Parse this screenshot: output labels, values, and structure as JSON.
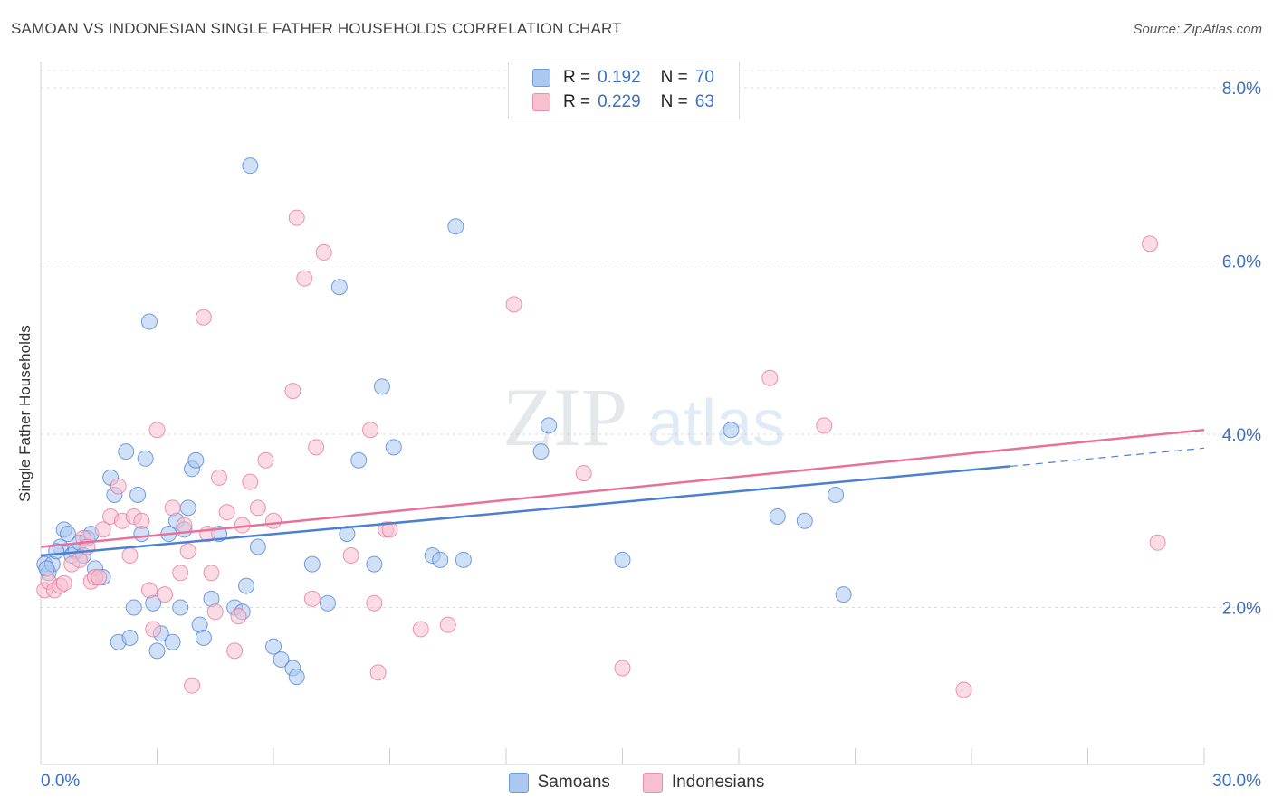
{
  "title": "SAMOAN VS INDONESIAN SINGLE FATHER HOUSEHOLDS CORRELATION CHART",
  "source": "Source: ZipAtlas.com",
  "watermark": {
    "zip": "ZIP",
    "atlas": "atlas"
  },
  "legend": {
    "rows": [
      {
        "r_label": "R =",
        "r_value": "0.192",
        "n_label": "N =",
        "n_value": "70",
        "color": "#aac8f0"
      },
      {
        "r_label": "R =",
        "r_value": "0.229",
        "n_label": "N =",
        "n_value": "63",
        "color": "#f7bfd0"
      }
    ]
  },
  "bottom_legend": [
    {
      "label": "Samoans",
      "color": "#aac8f0"
    },
    {
      "label": "Indonesians",
      "color": "#f7bfd0"
    }
  ],
  "chart_data": {
    "type": "scatter",
    "title": "SAMOAN VS INDONESIAN SINGLE FATHER HOUSEHOLDS CORRELATION CHART",
    "ylabel": "Single Father Households",
    "xlabel": "",
    "xlim": [
      0,
      30
    ],
    "ylim": [
      0,
      8.3
    ],
    "x_tick_labels": [
      {
        "x": 0,
        "label": "0.0%"
      },
      {
        "x": 30,
        "label": "30.0%"
      }
    ],
    "y_tick_labels": [
      {
        "y": 2,
        "label": "2.0%"
      },
      {
        "y": 4,
        "label": "4.0%"
      },
      {
        "y": 6,
        "label": "6.0%"
      },
      {
        "y": 8,
        "label": "8.0%"
      }
    ],
    "grid": true,
    "series": [
      {
        "name": "Samoans",
        "color": "#4a7fd4",
        "fill": "#aac8f0",
        "trend": {
          "x0": 0,
          "y0": 2.6,
          "x1": 25.0,
          "y1": 3.63,
          "dash_to": 30,
          "dash_y": 3.84
        },
        "points": [
          [
            0.1,
            2.5
          ],
          [
            0.2,
            2.4
          ],
          [
            0.3,
            2.5
          ],
          [
            0.5,
            2.7
          ],
          [
            0.6,
            2.9
          ],
          [
            0.7,
            2.85
          ],
          [
            0.8,
            2.6
          ],
          [
            0.9,
            2.65
          ],
          [
            1.0,
            2.75
          ],
          [
            1.1,
            2.6
          ],
          [
            1.2,
            2.8
          ],
          [
            1.4,
            2.45
          ],
          [
            1.6,
            2.35
          ],
          [
            1.8,
            3.5
          ],
          [
            1.9,
            3.3
          ],
          [
            2.0,
            1.6
          ],
          [
            2.2,
            3.8
          ],
          [
            2.3,
            1.65
          ],
          [
            2.4,
            2.0
          ],
          [
            2.5,
            3.3
          ],
          [
            2.6,
            2.85
          ],
          [
            2.7,
            3.72
          ],
          [
            2.8,
            5.3
          ],
          [
            2.9,
            2.05
          ],
          [
            3.0,
            1.5
          ],
          [
            3.1,
            1.7
          ],
          [
            3.3,
            2.85
          ],
          [
            3.4,
            1.6
          ],
          [
            3.5,
            3.0
          ],
          [
            3.6,
            2.0
          ],
          [
            3.7,
            2.9
          ],
          [
            3.8,
            3.15
          ],
          [
            3.9,
            3.6
          ],
          [
            4.0,
            3.7
          ],
          [
            4.1,
            1.8
          ],
          [
            4.2,
            1.65
          ],
          [
            4.4,
            2.1
          ],
          [
            4.6,
            2.85
          ],
          [
            5.0,
            2.0
          ],
          [
            5.2,
            1.95
          ],
          [
            5.3,
            2.25
          ],
          [
            5.4,
            7.1
          ],
          [
            5.6,
            2.7
          ],
          [
            6.0,
            1.55
          ],
          [
            6.2,
            1.4
          ],
          [
            6.5,
            1.3
          ],
          [
            6.6,
            1.2
          ],
          [
            7.0,
            2.5
          ],
          [
            7.4,
            2.05
          ],
          [
            7.7,
            5.7
          ],
          [
            7.9,
            2.85
          ],
          [
            8.2,
            3.7
          ],
          [
            8.6,
            2.5
          ],
          [
            8.8,
            4.55
          ],
          [
            9.1,
            3.85
          ],
          [
            10.1,
            2.6
          ],
          [
            10.3,
            2.55
          ],
          [
            10.7,
            6.4
          ],
          [
            10.9,
            2.55
          ],
          [
            12.9,
            3.8
          ],
          [
            13.1,
            4.1
          ],
          [
            15.0,
            2.55
          ],
          [
            17.8,
            4.05
          ],
          [
            19.0,
            3.05
          ],
          [
            19.7,
            3.0
          ],
          [
            20.5,
            3.3
          ],
          [
            20.7,
            2.15
          ],
          [
            0.15,
            2.45
          ],
          [
            0.4,
            2.65
          ],
          [
            1.3,
            2.85
          ]
        ]
      },
      {
        "name": "Indonesians",
        "color": "#e8709a",
        "fill": "#f7bfd0",
        "trend": {
          "x0": 0,
          "y0": 2.7,
          "x1": 30,
          "y1": 4.05
        },
        "points": [
          [
            0.1,
            2.2
          ],
          [
            0.2,
            2.3
          ],
          [
            0.35,
            2.2
          ],
          [
            0.5,
            2.25
          ],
          [
            0.6,
            2.28
          ],
          [
            0.8,
            2.5
          ],
          [
            1.0,
            2.55
          ],
          [
            1.1,
            2.8
          ],
          [
            1.2,
            2.7
          ],
          [
            1.3,
            2.3
          ],
          [
            1.4,
            2.35
          ],
          [
            1.5,
            2.35
          ],
          [
            1.6,
            2.9
          ],
          [
            1.8,
            3.05
          ],
          [
            2.0,
            3.4
          ],
          [
            2.1,
            3.0
          ],
          [
            2.3,
            2.6
          ],
          [
            2.4,
            3.05
          ],
          [
            2.6,
            3.0
          ],
          [
            2.8,
            2.2
          ],
          [
            2.9,
            1.75
          ],
          [
            3.0,
            4.05
          ],
          [
            3.2,
            2.15
          ],
          [
            3.4,
            3.15
          ],
          [
            3.6,
            2.4
          ],
          [
            3.7,
            2.95
          ],
          [
            3.8,
            2.65
          ],
          [
            3.9,
            1.1
          ],
          [
            4.2,
            5.35
          ],
          [
            4.3,
            2.85
          ],
          [
            4.4,
            2.4
          ],
          [
            4.5,
            1.95
          ],
          [
            4.6,
            3.5
          ],
          [
            4.8,
            3.1
          ],
          [
            5.0,
            1.5
          ],
          [
            5.1,
            1.9
          ],
          [
            5.2,
            2.95
          ],
          [
            5.4,
            3.45
          ],
          [
            5.6,
            3.15
          ],
          [
            5.8,
            3.7
          ],
          [
            6.0,
            3.0
          ],
          [
            6.5,
            4.5
          ],
          [
            6.6,
            6.5
          ],
          [
            6.8,
            5.8
          ],
          [
            7.0,
            2.1
          ],
          [
            7.1,
            3.85
          ],
          [
            7.3,
            6.1
          ],
          [
            8.0,
            2.6
          ],
          [
            8.5,
            4.05
          ],
          [
            8.6,
            2.05
          ],
          [
            8.7,
            1.25
          ],
          [
            8.9,
            2.9
          ],
          [
            9.0,
            2.9
          ],
          [
            9.8,
            1.75
          ],
          [
            10.5,
            1.8
          ],
          [
            12.2,
            5.5
          ],
          [
            14.0,
            3.55
          ],
          [
            15.0,
            1.3
          ],
          [
            18.8,
            4.65
          ],
          [
            20.2,
            4.1
          ],
          [
            23.8,
            1.05
          ],
          [
            28.6,
            6.2
          ],
          [
            28.8,
            2.75
          ]
        ]
      }
    ]
  }
}
